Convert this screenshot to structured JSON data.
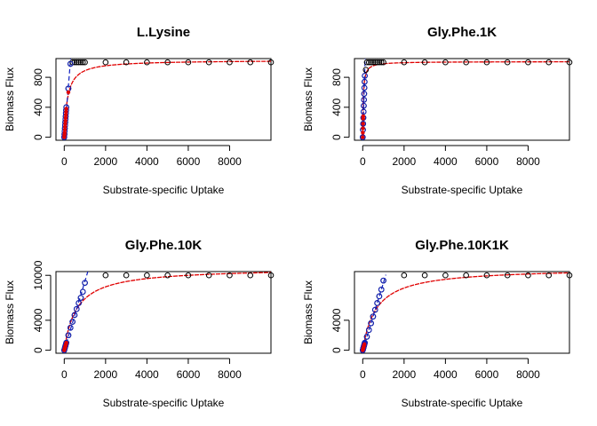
{
  "chart_data": [
    {
      "type": "scatter",
      "title": "L.Lysine",
      "xlabel": "Substrate-specific Uptake",
      "ylabel": "Biomass Flux",
      "xlim": [
        -400,
        10000
      ],
      "ylim": [
        -40,
        1050
      ],
      "xticks": [
        0,
        2000,
        4000,
        6000,
        8000
      ],
      "yticks": [
        0,
        400,
        800
      ],
      "points_black": [
        [
          0,
          0
        ],
        [
          10,
          40
        ],
        [
          20,
          80
        ],
        [
          30,
          120
        ],
        [
          40,
          160
        ],
        [
          50,
          200
        ],
        [
          60,
          240
        ],
        [
          70,
          280
        ],
        [
          80,
          320
        ],
        [
          90,
          360
        ],
        [
          100,
          400
        ],
        [
          200,
          650
        ],
        [
          300,
          980
        ],
        [
          400,
          1000
        ],
        [
          500,
          1000
        ],
        [
          600,
          1000
        ],
        [
          700,
          1000
        ],
        [
          800,
          1000
        ],
        [
          900,
          1000
        ],
        [
          1000,
          1000
        ],
        [
          2000,
          1000
        ],
        [
          3000,
          1000
        ],
        [
          4000,
          1000
        ],
        [
          5000,
          1000
        ],
        [
          6000,
          1000
        ],
        [
          7000,
          1000
        ],
        [
          8000,
          1000
        ],
        [
          9000,
          1000
        ],
        [
          10000,
          1000
        ]
      ],
      "points_red": [
        [
          0,
          0
        ],
        [
          10,
          30
        ],
        [
          20,
          60
        ],
        [
          30,
          100
        ],
        [
          40,
          140
        ],
        [
          50,
          180
        ],
        [
          60,
          220
        ],
        [
          70,
          260
        ],
        [
          80,
          300
        ],
        [
          90,
          340
        ],
        [
          100,
          380
        ],
        [
          200,
          600
        ]
      ],
      "curve_red": {
        "vmax": 1030,
        "km": 160
      },
      "line_blue": {
        "slope": 3.4,
        "x_max": 340
      }
    },
    {
      "type": "scatter",
      "title": "Gly.Phe.1K",
      "xlabel": "Substrate-specific Uptake",
      "ylabel": "Biomass Flux",
      "xlim": [
        -400,
        10000
      ],
      "ylim": [
        -40,
        1050
      ],
      "xticks": [
        0,
        2000,
        4000,
        6000,
        8000
      ],
      "yticks": [
        0,
        400,
        800
      ],
      "points_black": [
        [
          0,
          0
        ],
        [
          10,
          100
        ],
        [
          20,
          180
        ],
        [
          30,
          260
        ],
        [
          40,
          340
        ],
        [
          50,
          420
        ],
        [
          60,
          500
        ],
        [
          70,
          580
        ],
        [
          80,
          660
        ],
        [
          90,
          740
        ],
        [
          100,
          820
        ],
        [
          150,
          900
        ],
        [
          200,
          1000
        ],
        [
          300,
          1000
        ],
        [
          400,
          1000
        ],
        [
          500,
          1000
        ],
        [
          600,
          1000
        ],
        [
          700,
          1000
        ],
        [
          800,
          1000
        ],
        [
          900,
          1000
        ],
        [
          1000,
          1000
        ],
        [
          2000,
          1000
        ],
        [
          3000,
          1000
        ],
        [
          4000,
          1000
        ],
        [
          5000,
          1000
        ],
        [
          6000,
          1000
        ],
        [
          7000,
          1000
        ],
        [
          8000,
          1000
        ],
        [
          9000,
          1000
        ],
        [
          10000,
          1000
        ]
      ],
      "points_red": [
        [
          0,
          0
        ],
        [
          5,
          60
        ],
        [
          10,
          120
        ],
        [
          15,
          180
        ],
        [
          20,
          250
        ],
        [
          25,
          280
        ]
      ],
      "curve_red": {
        "vmax": 1010,
        "km": 30
      },
      "line_blue": {
        "slope": 9.0,
        "x_max": 125
      }
    },
    {
      "type": "scatter",
      "title": "Gly.Phe.10K",
      "xlabel": "Substrate-specific Uptake",
      "ylabel": "Biomass Flux",
      "xlim": [
        -400,
        10000
      ],
      "ylim": [
        -400,
        10500
      ],
      "xticks": [
        0,
        2000,
        4000,
        6000,
        8000
      ],
      "yticks": [
        0,
        4000,
        10000
      ],
      "points_black": [
        [
          0,
          0
        ],
        [
          20,
          200
        ],
        [
          40,
          400
        ],
        [
          60,
          600
        ],
        [
          80,
          800
        ],
        [
          100,
          1000
        ],
        [
          200,
          2000
        ],
        [
          300,
          3000
        ],
        [
          400,
          3800
        ],
        [
          500,
          4700
        ],
        [
          600,
          5500
        ],
        [
          700,
          6300
        ],
        [
          800,
          7000
        ],
        [
          900,
          7800
        ],
        [
          1000,
          9000
        ],
        [
          2000,
          10000
        ],
        [
          3000,
          10000
        ],
        [
          4000,
          10000
        ],
        [
          5000,
          10000
        ],
        [
          6000,
          10000
        ],
        [
          7000,
          10000
        ],
        [
          8000,
          10000
        ],
        [
          9000,
          10000
        ],
        [
          10000,
          10000
        ]
      ],
      "points_red": [
        [
          0,
          0
        ],
        [
          10,
          100
        ],
        [
          20,
          200
        ],
        [
          30,
          300
        ],
        [
          40,
          400
        ],
        [
          50,
          500
        ],
        [
          60,
          600
        ],
        [
          70,
          700
        ],
        [
          80,
          800
        ],
        [
          90,
          900
        ],
        [
          100,
          1000
        ]
      ],
      "curve_red": {
        "vmax": 11000,
        "km": 600
      },
      "line_blue": {
        "slope": 9.2,
        "x_max": 1150
      }
    },
    {
      "type": "scatter",
      "title": "Gly.Phe.10K1K",
      "xlabel": "Substrate-specific Uptake",
      "ylabel": "Biomass Flux",
      "xlim": [
        -400,
        10000
      ],
      "ylim": [
        -400,
        10500
      ],
      "xticks": [
        0,
        2000,
        4000,
        6000,
        8000
      ],
      "yticks": [
        0,
        4000
      ],
      "points_black": [
        [
          0,
          0
        ],
        [
          10,
          100
        ],
        [
          20,
          200
        ],
        [
          30,
          300
        ],
        [
          40,
          400
        ],
        [
          50,
          500
        ],
        [
          60,
          600
        ],
        [
          70,
          700
        ],
        [
          80,
          800
        ],
        [
          90,
          900
        ],
        [
          100,
          1000
        ],
        [
          200,
          1800
        ],
        [
          300,
          2700
        ],
        [
          400,
          3600
        ],
        [
          500,
          4500
        ],
        [
          600,
          5400
        ],
        [
          700,
          6300
        ],
        [
          800,
          7200
        ],
        [
          900,
          8100
        ],
        [
          1000,
          9300
        ],
        [
          2000,
          10000
        ],
        [
          3000,
          10000
        ],
        [
          4000,
          10000
        ],
        [
          5000,
          10000
        ],
        [
          6000,
          10000
        ],
        [
          7000,
          10000
        ],
        [
          8000,
          10000
        ],
        [
          9000,
          10000
        ],
        [
          10000,
          10000
        ]
      ],
      "points_red": [
        [
          0,
          0
        ],
        [
          10,
          100
        ],
        [
          20,
          200
        ],
        [
          30,
          300
        ],
        [
          40,
          400
        ],
        [
          50,
          500
        ],
        [
          60,
          600
        ],
        [
          70,
          700
        ],
        [
          80,
          800
        ]
      ],
      "curve_red": {
        "vmax": 11000,
        "km": 650
      },
      "line_blue": {
        "slope": 9.0,
        "x_max": 1120
      }
    }
  ]
}
